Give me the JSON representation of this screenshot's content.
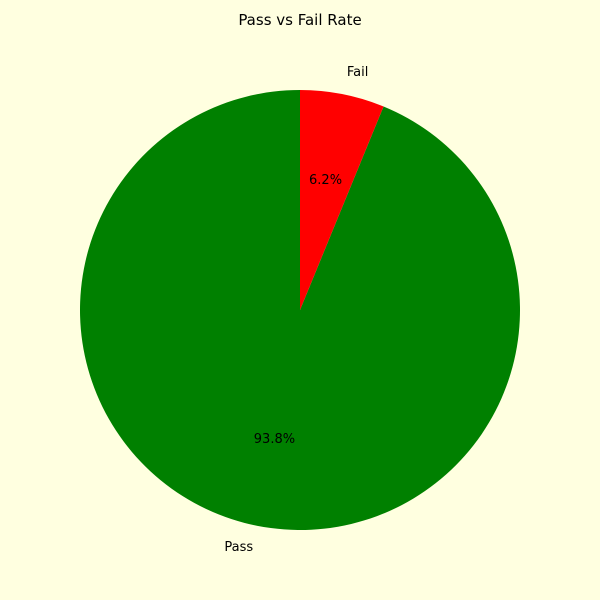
{
  "chart_data": {
    "type": "pie",
    "title": "Pass vs Fail Rate",
    "categories": [
      "Pass",
      "Fail"
    ],
    "values": [
      93.8,
      6.2
    ],
    "percent_labels": [
      "93.8%",
      "6.2%"
    ],
    "colors": [
      "#008000",
      "#ff0000"
    ],
    "start_angle_deg": 90,
    "direction": "clockwise-from-top, Fail first counterclockwise"
  },
  "background_color": "#ffffe0"
}
